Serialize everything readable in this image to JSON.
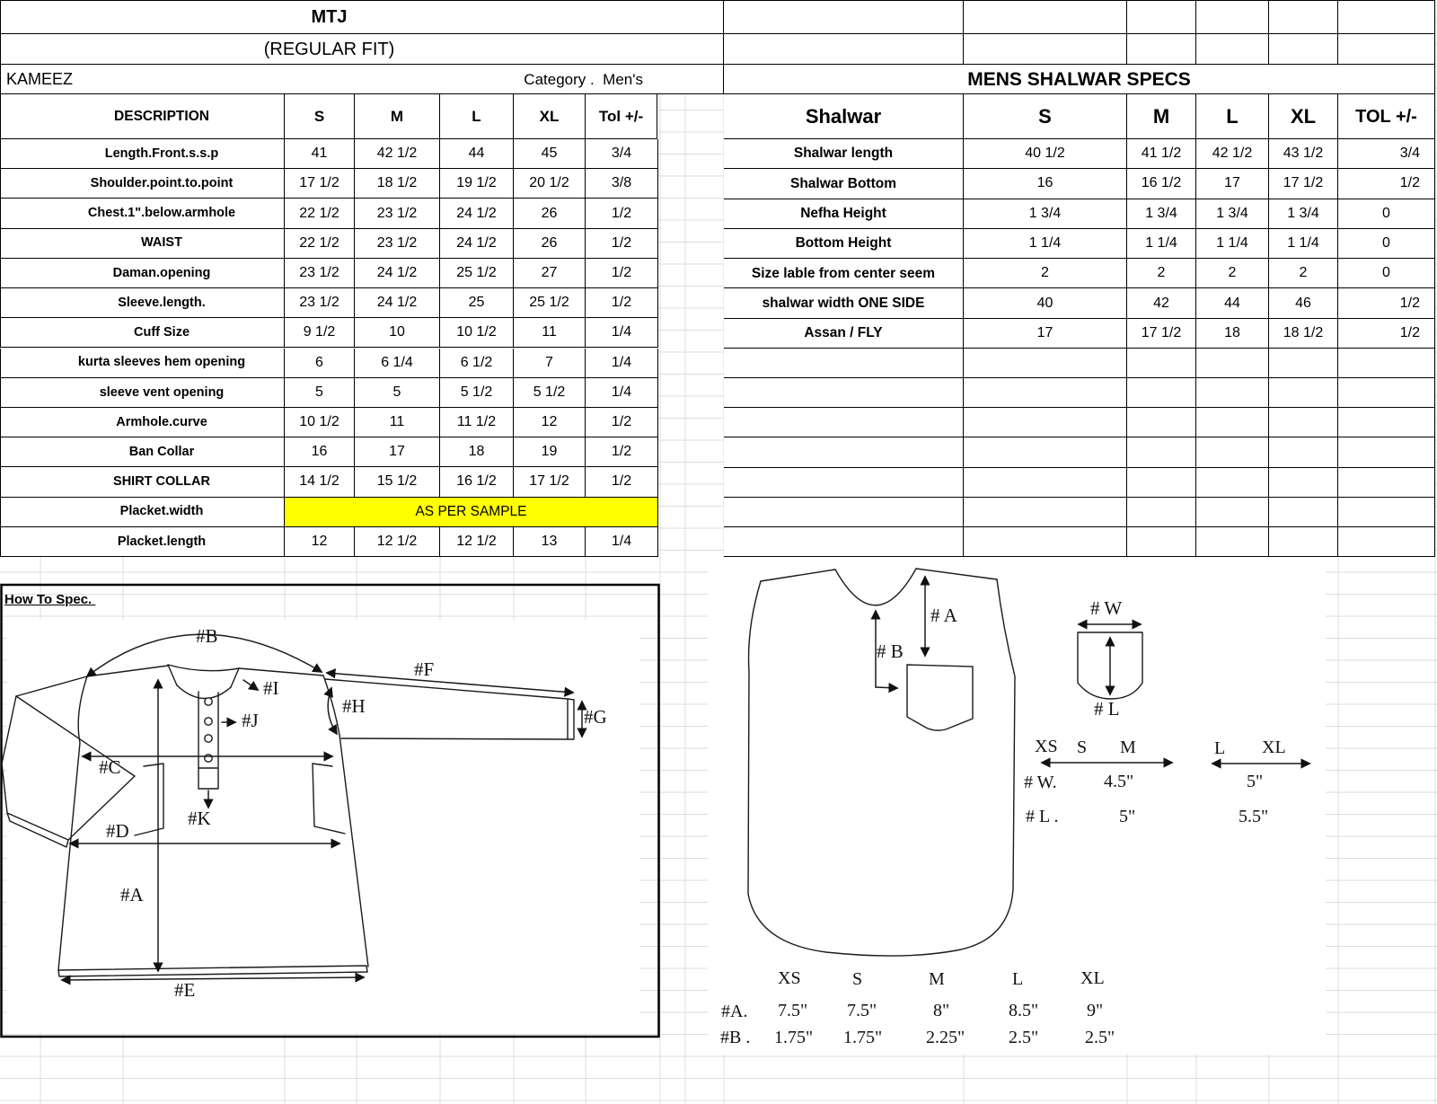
{
  "sheet": {
    "kameez_table": {
      "title": "MTJ",
      "subtitle": "(REGULAR FIT)",
      "name": "KAMEEZ",
      "category": "Category .  Men's",
      "headers": [
        "DESCRIPTION",
        "S",
        "M",
        "L",
        "XL",
        "Tol +/-"
      ],
      "rows": [
        {
          "label": "Length.Front.s.s.p",
          "values": [
            "41",
            "42 1/2",
            "44",
            "45",
            "3/4"
          ]
        },
        {
          "label": "Shoulder.point.to.point",
          "values": [
            "17 1/2",
            "18 1/2",
            "19 1/2",
            "20 1/2",
            "3/8"
          ]
        },
        {
          "label": "Chest.1\".below.armhole",
          "values": [
            "22 1/2",
            "23 1/2",
            "24 1/2",
            "26",
            "1/2"
          ]
        },
        {
          "label": "WAIST",
          "values": [
            "22 1/2",
            "23 1/2",
            "24 1/2",
            "26",
            "1/2"
          ]
        },
        {
          "label": "Daman.opening",
          "values": [
            "23 1/2",
            "24 1/2",
            "25 1/2",
            "27",
            "1/2"
          ]
        },
        {
          "label": "Sleeve.length.",
          "values": [
            "23 1/2",
            "24 1/2",
            "25",
            "25 1/2",
            "1/2"
          ]
        },
        {
          "label": "Cuff Size",
          "values": [
            "9 1/2",
            "10",
            "10 1/2",
            "11",
            "1/4"
          ]
        },
        {
          "label": "kurta sleeves hem opening",
          "values": [
            "6",
            "6 1/4",
            "6 1/2",
            "7",
            "1/4"
          ]
        },
        {
          "label": "sleeve vent opening",
          "values": [
            "5",
            "5",
            "5 1/2",
            "5 1/2",
            "1/4"
          ]
        },
        {
          "label": "Armhole.curve",
          "values": [
            "10 1/2",
            "11",
            "11 1/2",
            "12",
            "1/2"
          ]
        },
        {
          "label": "Ban Collar",
          "values": [
            "16",
            "17",
            "18",
            "19",
            "1/2"
          ]
        },
        {
          "label": "SHIRT COLLAR",
          "values": [
            "14 1/2",
            "15 1/2",
            "16 1/2",
            "17 1/2",
            "1/2"
          ]
        },
        {
          "label": "Placket.width",
          "merged": "AS PER SAMPLE",
          "highlight": "#FFFF00"
        },
        {
          "label": "Placket.length",
          "values": [
            "12",
            "12 1/2",
            "12 1/2",
            "13",
            "1/4"
          ]
        }
      ]
    },
    "shalwar_table": {
      "title": "MENS SHALWAR SPECS",
      "headers": [
        "Shalwar",
        "S",
        "M",
        "L",
        "XL",
        "TOL +/-"
      ],
      "rows": [
        {
          "label": "Shalwar length",
          "values": [
            "40 1/2",
            "41 1/2",
            "42 1/2",
            "43 1/2",
            "3/4"
          ]
        },
        {
          "label": "Shalwar Bottom",
          "values": [
            "16",
            "16 1/2",
            "17",
            "17 1/2",
            "1/2"
          ]
        },
        {
          "label": "Nefha Height",
          "values": [
            "1 3/4",
            "1 3/4",
            "1 3/4",
            "1 3/4",
            "0"
          ]
        },
        {
          "label": "Bottom Height",
          "values": [
            "1 1/4",
            "1 1/4",
            "1 1/4",
            "1 1/4",
            "0"
          ]
        },
        {
          "label": "Size lable from center seem",
          "values": [
            "2",
            "2",
            "2",
            "2",
            "0"
          ]
        },
        {
          "label": "shalwar width ONE SIDE",
          "values": [
            "40",
            "42",
            "44",
            "46",
            "1/2"
          ]
        },
        {
          "label": "Assan / FLY",
          "values": [
            "17",
            "17 1/2",
            "18",
            "18 1/2",
            "1/2"
          ]
        }
      ],
      "empty_rows": 7
    },
    "how_to_spec": {
      "heading": "How To Spec. "
    },
    "diagram": {
      "kameez_labels": {
        "a": "#A",
        "b": "#B",
        "c": "#C",
        "d": "#D",
        "e": "#E",
        "f": "#F",
        "g": "#G",
        "h": "#H",
        "i": "#I",
        "j": "#J",
        "k": "#K"
      },
      "shalwar_labels": {
        "a": "# A",
        "b": "# B"
      },
      "pocket_labels": {
        "w": "# W",
        "l": "# L"
      },
      "pocket_table": {
        "group1_sizes": [
          "XS",
          "S",
          "M"
        ],
        "group2_sizes": [
          "L",
          "XL"
        ],
        "rows": [
          {
            "label": "# W.",
            "group1": "4.5\"",
            "group2": "5\""
          },
          {
            "label": "# L .",
            "group1": "5\"",
            "group2": "5.5\""
          }
        ]
      },
      "bottom_table": {
        "sizes": [
          "XS",
          "S",
          "M",
          "L",
          "XL"
        ],
        "rows": [
          {
            "label": "#A.",
            "values": [
              "7.5\"",
              "7.5\"",
              "8\"",
              "8.5\"",
              "9\""
            ]
          },
          {
            "label": "#B .",
            "values": [
              "1.75\"",
              "1.75\"",
              "2.25\"",
              "2.5\"",
              "2.5\""
            ]
          }
        ]
      }
    },
    "colors": {
      "highlight": "#FFFF00",
      "gridline": "#dcdcdc",
      "ink": "#000000"
    }
  }
}
